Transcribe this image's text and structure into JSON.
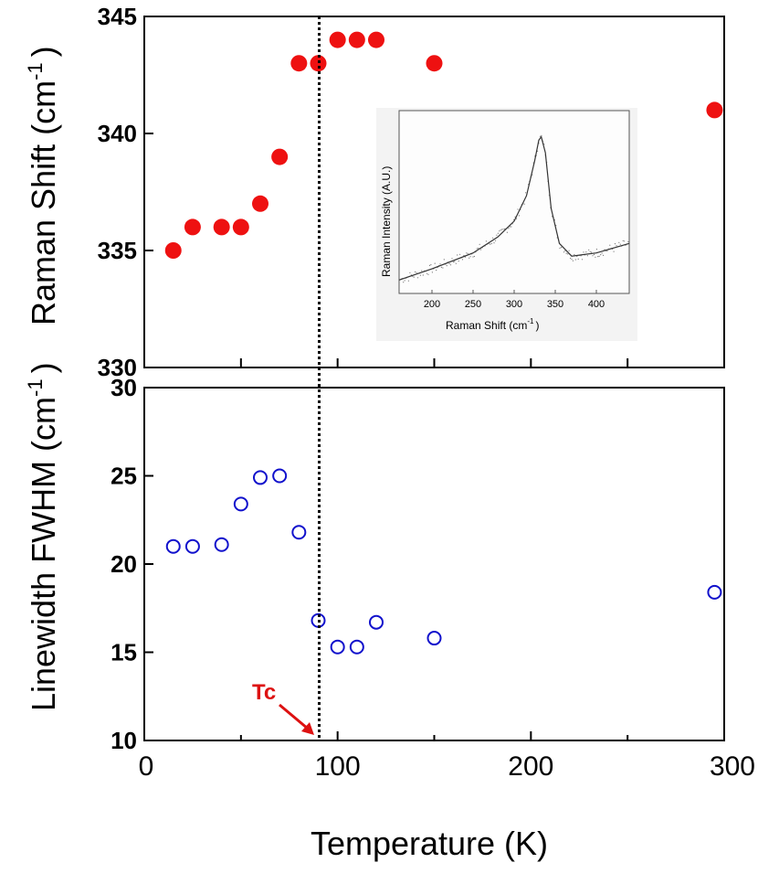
{
  "chart_data": [
    {
      "type": "scatter",
      "panel": "top",
      "ylabel": "Raman Shift (cm",
      "ylabel_sup": "-1",
      "ylabel_close": ")",
      "ylim": [
        330,
        345
      ],
      "xlim": [
        0,
        300
      ],
      "yticks": [
        {
          "value": 330,
          "label": "330"
        },
        {
          "value": 335,
          "label": "335"
        },
        {
          "value": 340,
          "label": "340"
        },
        {
          "value": 345,
          "label": "345"
        }
      ],
      "marker": "filled-circle",
      "color": "#ee1111",
      "x": [
        15,
        25,
        40,
        50,
        60,
        70,
        80,
        90,
        100,
        110,
        120,
        150,
        295
      ],
      "y": [
        335,
        336,
        336,
        336,
        337,
        339,
        343,
        343,
        344,
        344,
        344,
        343,
        341
      ]
    },
    {
      "type": "scatter",
      "panel": "bottom",
      "ylabel": "Linewidth FWHM (cm",
      "ylabel_sup": "-1",
      "ylabel_close": ")",
      "xlabel": "Temperature (K)",
      "ylim": [
        10,
        30
      ],
      "xlim": [
        0,
        300
      ],
      "yticks": [
        {
          "value": 10,
          "label": "10"
        },
        {
          "value": 15,
          "label": "15"
        },
        {
          "value": 20,
          "label": "20"
        },
        {
          "value": 25,
          "label": "25"
        },
        {
          "value": 30,
          "label": "30"
        }
      ],
      "xticks": [
        {
          "value": 0,
          "label": "0"
        },
        {
          "value": 100,
          "label": "100"
        },
        {
          "value": 200,
          "label": "200"
        },
        {
          "value": 300,
          "label": "300"
        }
      ],
      "marker": "open-circle",
      "color": "#1111cc",
      "x": [
        15,
        25,
        40,
        50,
        60,
        70,
        80,
        90,
        100,
        110,
        120,
        150,
        295
      ],
      "y": [
        21.0,
        21.0,
        21.1,
        23.4,
        24.9,
        25.0,
        21.8,
        16.8,
        15.3,
        15.3,
        16.7,
        15.8,
        18.4
      ]
    },
    {
      "type": "line",
      "panel": "inset",
      "xlabel": "Raman Shift (cm",
      "xlabel_sup": "-1",
      "xlabel_close": ")",
      "ylabel": "Raman Intensity (A.U.)",
      "xlim": [
        160,
        440
      ],
      "xticks": [
        {
          "value": 200,
          "label": "200"
        },
        {
          "value": 250,
          "label": "250"
        },
        {
          "value": 300,
          "label": "300"
        },
        {
          "value": 350,
          "label": "350"
        },
        {
          "value": 400,
          "label": "400"
        }
      ],
      "series": [
        {
          "name": "fit",
          "x": [
            160,
            200,
            250,
            280,
            300,
            315,
            325,
            330,
            333,
            338,
            345,
            355,
            370,
            400,
            440
          ],
          "y": [
            0.05,
            0.12,
            0.22,
            0.32,
            0.42,
            0.58,
            0.8,
            0.93,
            0.95,
            0.85,
            0.5,
            0.28,
            0.2,
            0.22,
            0.28
          ]
        }
      ]
    }
  ],
  "annotation": {
    "label": "Tc",
    "x": 90,
    "color": "#dd1111"
  }
}
